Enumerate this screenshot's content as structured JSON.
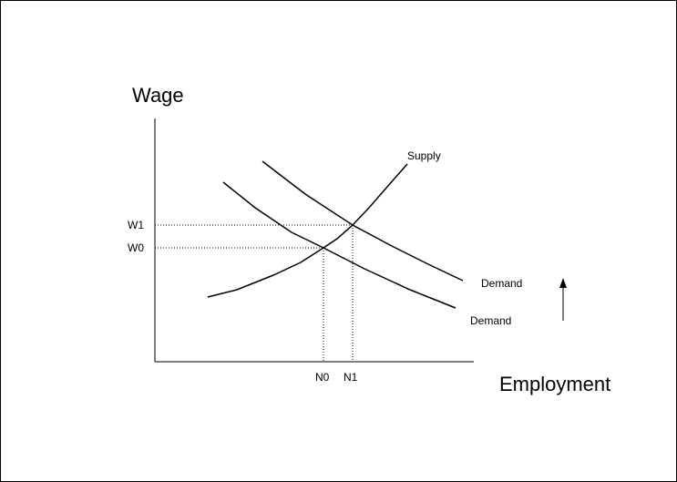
{
  "axes": {
    "y_label": "Wage",
    "x_label": "Employment"
  },
  "wage_levels": [
    "W1",
    "W0"
  ],
  "employment_levels": [
    "N0",
    "N1"
  ],
  "curves": {
    "supply": "Supply",
    "demand_new": "Demand",
    "demand_old": "Demand"
  }
}
